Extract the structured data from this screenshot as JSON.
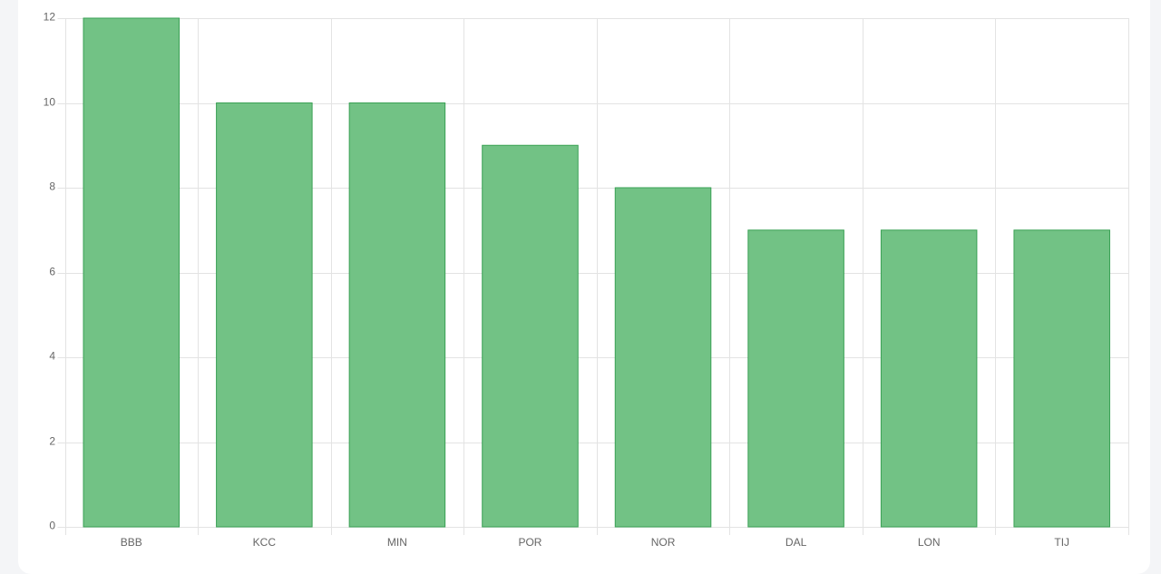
{
  "chart_data": {
    "type": "bar",
    "categories": [
      "BBB",
      "KCC",
      "MIN",
      "POR",
      "NOR",
      "DAL",
      "LON",
      "TIJ"
    ],
    "values": [
      12,
      10,
      10,
      9,
      8,
      7,
      7,
      7
    ],
    "color": "#72c285",
    "border_color": "#3aa155",
    "ylim": [
      0,
      12
    ],
    "yticks": [
      0,
      2,
      4,
      6,
      8,
      10,
      12
    ],
    "grid": true
  }
}
